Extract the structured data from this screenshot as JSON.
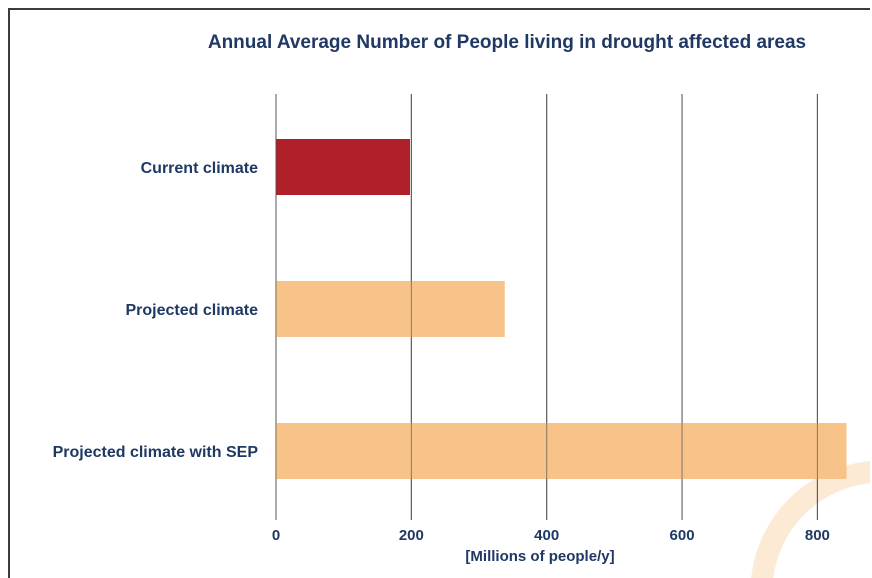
{
  "chart_data": {
    "type": "bar",
    "orientation": "horizontal",
    "title": "Annual Average Number of People living in drought affected areas",
    "categories": [
      "Current climate",
      "Projected climate",
      "Projected climate with SEP"
    ],
    "values": [
      198,
      338,
      843
    ],
    "bar_colors": [
      "#b0202a",
      "#f8c388",
      "#f8c388"
    ],
    "xlabel": "[Millions of people/y]",
    "ylabel": "",
    "xlim": [
      0,
      860
    ],
    "xticks": [
      0,
      200,
      400,
      600,
      800
    ],
    "grid": true,
    "legend": "none"
  },
  "colors": {
    "text": "#1f3864",
    "gridline": "#555555",
    "decor_arc": "#f8c388"
  }
}
